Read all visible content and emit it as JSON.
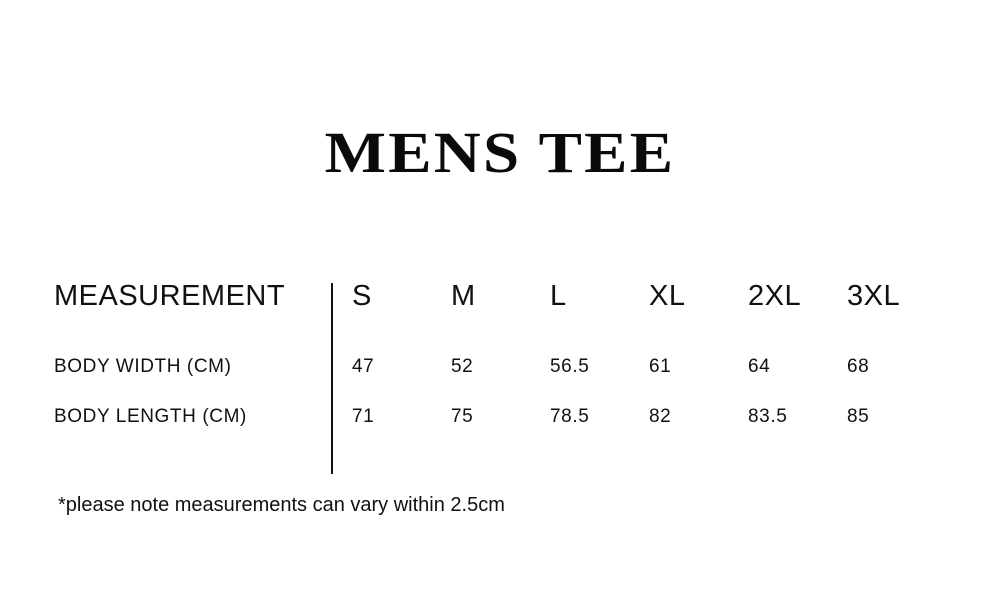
{
  "title": "MENS TEE",
  "table": {
    "header_label": "MEASUREMENT",
    "sizes": [
      "S",
      "M",
      "L",
      "XL",
      "2XL",
      "3XL"
    ],
    "rows": [
      {
        "label": "BODY WIDTH (CM)",
        "values": [
          "47",
          "52",
          "56.5",
          "61",
          "64",
          "68"
        ]
      },
      {
        "label": "BODY LENGTH (CM)",
        "values": [
          "71",
          "75",
          "78.5",
          "82",
          "83.5",
          "85"
        ]
      }
    ]
  },
  "footnote": "*please note measurements can vary within 2.5cm"
}
